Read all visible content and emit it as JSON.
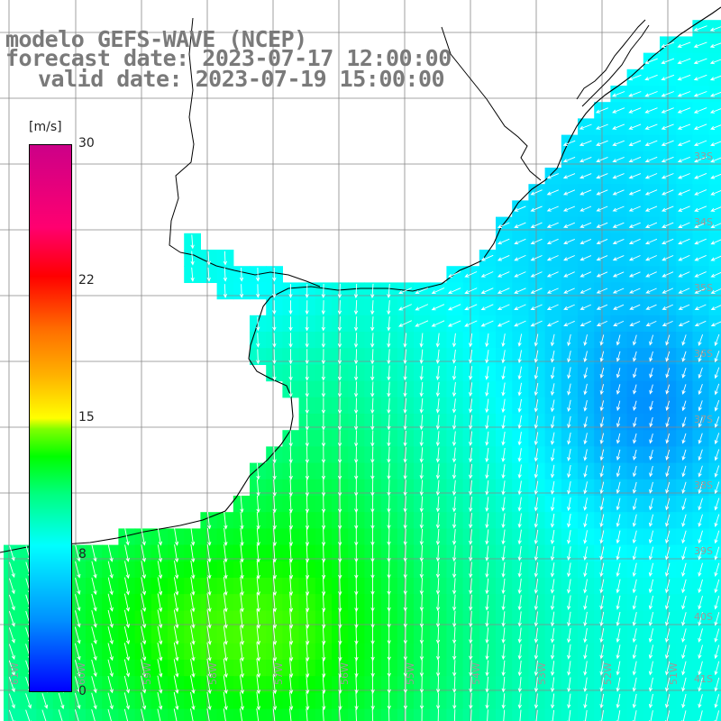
{
  "title": {
    "line1": "modelo GEFS-WAVE (NCEP)",
    "line2": "forecast date: 2023-07-17 12:00:00",
    "line3": "valid date: 2023-07-19 15:00:00"
  },
  "colorbar": {
    "unit": "[m/s]",
    "ticks": [
      {
        "label": "30",
        "value": 30
      },
      {
        "label": "22",
        "value": 22
      },
      {
        "label": "15",
        "value": 15
      },
      {
        "label": "8",
        "value": 8
      },
      {
        "label": "0",
        "value": 0
      }
    ],
    "colors": [
      "#0000ff",
      "#00ffff",
      "#00ff00",
      "#ffff00",
      "#ff0000",
      "#cc0088"
    ]
  },
  "map": {
    "lon_range": [
      -61.3,
      -50.2
    ],
    "lat_range": [
      -41.1,
      -30.2
    ],
    "lon_labels": [
      "61W",
      "60W",
      "59W",
      "58W",
      "57W",
      "56W",
      "55W",
      "54W",
      "53W",
      "52W",
      "51W"
    ],
    "lat_labels": [
      "33S",
      "34S",
      "35S",
      "36S",
      "37S",
      "38S",
      "39S",
      "40S",
      "41S"
    ],
    "colors": {
      "grid": "#808080",
      "coast": "#000000",
      "arrows": "#ffffff"
    }
  }
}
